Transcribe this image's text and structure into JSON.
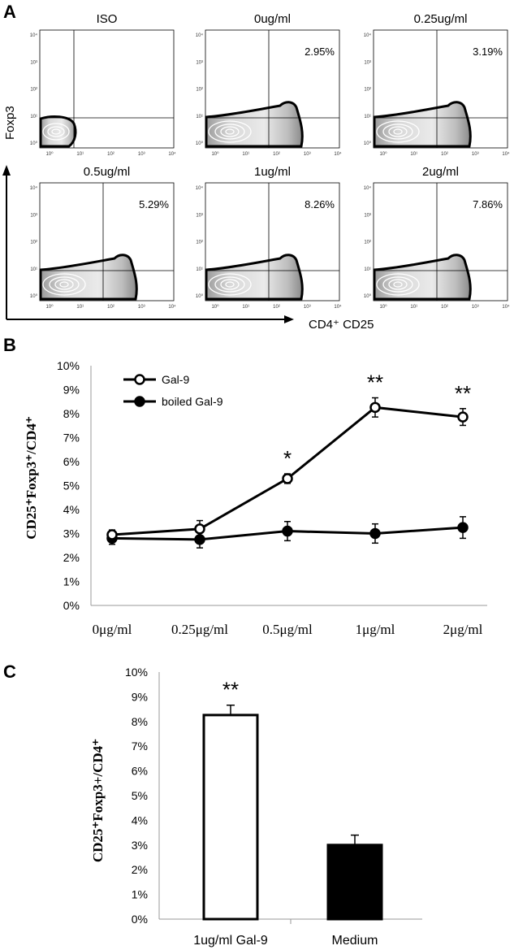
{
  "panel_a": {
    "letter": "A",
    "y_axis_label": "Foxp3",
    "x_axis_label": "CD4⁺ CD25",
    "tick_labels": [
      "10⁰",
      "10¹",
      "10²",
      "10³",
      "10⁴"
    ],
    "plots": [
      {
        "title": "ISO",
        "percent": ""
      },
      {
        "title": "0ug/ml",
        "percent": "2.95%"
      },
      {
        "title": "0.25ug/ml",
        "percent": "3.19%"
      },
      {
        "title": "0.5ug/ml",
        "percent": "5.29%"
      },
      {
        "title": "1ug/ml",
        "percent": "8.26%"
      },
      {
        "title": "2ug/ml",
        "percent": "7.86%"
      }
    ]
  },
  "chart_data": [
    {
      "panel": "B",
      "type": "line",
      "ylabel": "CD25⁺Foxp3⁺/CD4⁺",
      "xlabel": "",
      "categories": [
        "0μg/ml",
        "0.25μg/ml",
        "0.5μg/ml",
        "1μg/ml",
        "2μg/ml"
      ],
      "ylim": [
        0,
        10
      ],
      "yticks": [
        "0%",
        "1%",
        "2%",
        "3%",
        "4%",
        "5%",
        "6%",
        "7%",
        "8%",
        "9%",
        "10%"
      ],
      "legend_position": "top-left",
      "series": [
        {
          "name": "Gal-9",
          "marker": "open-circle",
          "values": [
            2.95,
            3.19,
            5.29,
            8.26,
            7.86
          ],
          "errors": [
            0.2,
            0.35,
            0.2,
            0.4,
            0.35
          ]
        },
        {
          "name": "boiled Gal-9",
          "marker": "filled-circle",
          "values": [
            2.8,
            2.75,
            3.1,
            3.0,
            3.25
          ],
          "errors": [
            0.25,
            0.35,
            0.4,
            0.4,
            0.45
          ]
        }
      ],
      "annotations": [
        {
          "category_index": 2,
          "text": "*"
        },
        {
          "category_index": 3,
          "text": "**"
        },
        {
          "category_index": 4,
          "text": "**"
        }
      ]
    },
    {
      "panel": "C",
      "type": "bar",
      "ylabel": "CD25⁺Foxp3+/CD4⁺",
      "xlabel": "",
      "categories": [
        "1ug/ml Gal-9",
        "Medium"
      ],
      "values": [
        8.26,
        3.0
      ],
      "errors": [
        0.4,
        0.4
      ],
      "bar_fill": [
        "#ffffff",
        "#000000"
      ],
      "ylim": [
        0,
        10
      ],
      "yticks": [
        "0%",
        "1%",
        "2%",
        "3%",
        "4%",
        "5%",
        "6%",
        "7%",
        "8%",
        "9%",
        "10%"
      ],
      "annotations": [
        {
          "category_index": 0,
          "text": "**"
        }
      ]
    }
  ]
}
